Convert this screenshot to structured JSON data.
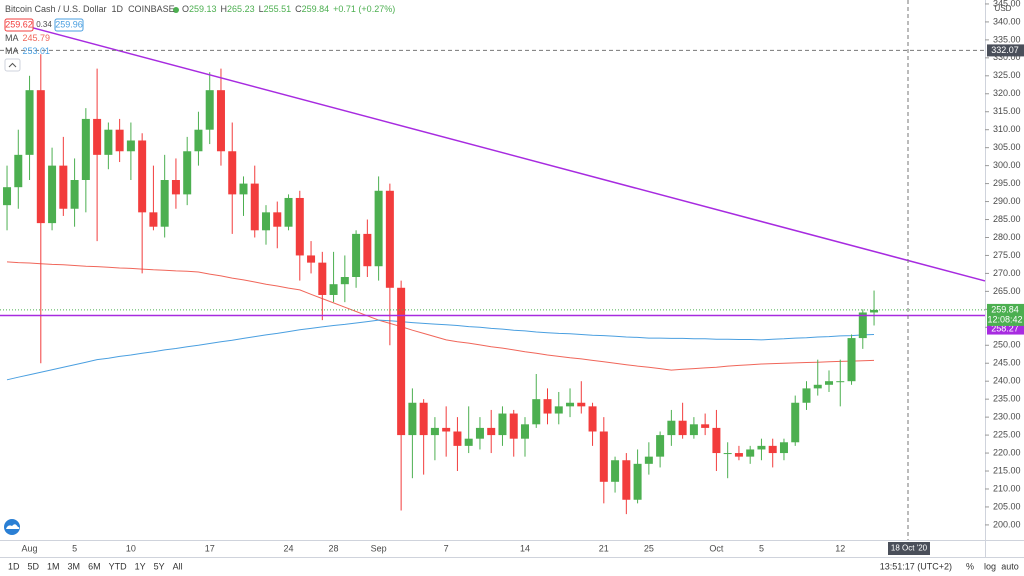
{
  "chart_data": {
    "type": "candlestick",
    "header": {
      "symbol": "Bitcoin Cash / U.S. Dollar",
      "interval": "1D",
      "exchange": "COINBASE",
      "quote": [
        [
          "O",
          "259.13"
        ],
        [
          "H",
          "265.23"
        ],
        [
          "L",
          "255.51"
        ],
        [
          "C",
          "259.84"
        ]
      ],
      "change": "+0.71 (+0.27%)",
      "sell": "259.62",
      "spread": "0.34",
      "buy": "259.96"
    },
    "currency": "USD",
    "up_color": "#4caf50",
    "down_color": "#f23c3c",
    "categories": [
      null,
      null,
      "Aug",
      null,
      null,
      null,
      "5",
      null,
      null,
      null,
      null,
      "10",
      null,
      null,
      null,
      null,
      null,
      null,
      "17",
      null,
      null,
      null,
      null,
      null,
      null,
      "24",
      null,
      null,
      null,
      "28",
      null,
      null,
      null,
      "Sep",
      null,
      null,
      null,
      null,
      null,
      "7",
      null,
      null,
      null,
      null,
      null,
      null,
      "14",
      null,
      null,
      null,
      null,
      null,
      null,
      "21",
      null,
      null,
      null,
      "25",
      null,
      null,
      null,
      null,
      null,
      "Oct",
      null,
      null,
      null,
      "5",
      null,
      null,
      null,
      null,
      null,
      null,
      "12",
      null,
      null,
      null
    ],
    "ohlc": [
      [
        289,
        300,
        282,
        294
      ],
      [
        294,
        310,
        288,
        303
      ],
      [
        303,
        325,
        296,
        321
      ],
      [
        321,
        331,
        245,
        284
      ],
      [
        284,
        305,
        282,
        300
      ],
      [
        300,
        308,
        286,
        288
      ],
      [
        288,
        302,
        283,
        296
      ],
      [
        296,
        316,
        287,
        313
      ],
      [
        313,
        327,
        279,
        303
      ],
      [
        303,
        312,
        299,
        310
      ],
      [
        310,
        313,
        301,
        304
      ],
      [
        304,
        312,
        296,
        307
      ],
      [
        307,
        309,
        270,
        287
      ],
      [
        287,
        300,
        282,
        283
      ],
      [
        283,
        303,
        280,
        296
      ],
      [
        296,
        302,
        288,
        292
      ],
      [
        292,
        308,
        289,
        304
      ],
      [
        304,
        315,
        300,
        310
      ],
      [
        310,
        326,
        306,
        321
      ],
      [
        321,
        327,
        300,
        304
      ],
      [
        304,
        312,
        281,
        292
      ],
      [
        292,
        297,
        286,
        295
      ],
      [
        295,
        300,
        280,
        282
      ],
      [
        282,
        289,
        278,
        287
      ],
      [
        287,
        290,
        277,
        283
      ],
      [
        283,
        292,
        282,
        291
      ],
      [
        291,
        293,
        268,
        275
      ],
      [
        275,
        279,
        270,
        273
      ],
      [
        273,
        276,
        257,
        264
      ],
      [
        264,
        276,
        262,
        267
      ],
      [
        267,
        275,
        262,
        269
      ],
      [
        269,
        282,
        266,
        281
      ],
      [
        281,
        285,
        269,
        272
      ],
      [
        272,
        297,
        268,
        293
      ],
      [
        293,
        295,
        250,
        266
      ],
      [
        266,
        268,
        204,
        225
      ],
      [
        225,
        238,
        213,
        234
      ],
      [
        234,
        235,
        214,
        225
      ],
      [
        225,
        230,
        218,
        227
      ],
      [
        227,
        233,
        219,
        226
      ],
      [
        226,
        230,
        215,
        222
      ],
      [
        222,
        233,
        220,
        224
      ],
      [
        224,
        230,
        221,
        227
      ],
      [
        227,
        232,
        220,
        225
      ],
      [
        225,
        233,
        222,
        231
      ],
      [
        231,
        232,
        219,
        224
      ],
      [
        224,
        230,
        219,
        228
      ],
      [
        228,
        242,
        227,
        235
      ],
      [
        235,
        238,
        228,
        231
      ],
      [
        231,
        237,
        228,
        233
      ],
      [
        233,
        238,
        230,
        234
      ],
      [
        234,
        240,
        231,
        233
      ],
      [
        233,
        234,
        222,
        226
      ],
      [
        226,
        230,
        206,
        212
      ],
      [
        212,
        219,
        209,
        218
      ],
      [
        218,
        220,
        203,
        207
      ],
      [
        207,
        221,
        206,
        217
      ],
      [
        217,
        223,
        214,
        219
      ],
      [
        219,
        226,
        216,
        225
      ],
      [
        225,
        232,
        222,
        229
      ],
      [
        229,
        234,
        224,
        225
      ],
      [
        225,
        230,
        224,
        228
      ],
      [
        228,
        231,
        225,
        227
      ],
      [
        227,
        232,
        215,
        220
      ],
      [
        220,
        223,
        213,
        220
      ],
      [
        220,
        222,
        218,
        219
      ],
      [
        219,
        222,
        217,
        221
      ],
      [
        221,
        224,
        218,
        222
      ],
      [
        222,
        224,
        216,
        220
      ],
      [
        220,
        224,
        218,
        223
      ],
      [
        223,
        236,
        222,
        234
      ],
      [
        234,
        240,
        232,
        238
      ],
      [
        238,
        246,
        236,
        239
      ],
      [
        239,
        243,
        237,
        240
      ],
      [
        240,
        246,
        233,
        240
      ],
      [
        240,
        253,
        239,
        252
      ],
      [
        252,
        260,
        249,
        259.13
      ],
      [
        259.13,
        265.23,
        255.51,
        259.84
      ]
    ],
    "ma": [
      {
        "name": "MA",
        "color": "#f0665a",
        "legend_value": "245.79",
        "values": [
          273.2,
          273.0,
          272.9,
          272.7,
          272.5,
          272.4,
          272.2,
          272.0,
          271.9,
          271.7,
          271.5,
          271.4,
          271.2,
          271.0,
          270.9,
          270.7,
          270.6,
          270.4,
          269.8,
          269.3,
          268.7,
          268.2,
          267.6,
          267.0,
          266.5,
          265.9,
          265.4,
          264.2,
          263.0,
          261.8,
          260.6,
          259.4,
          258.2,
          257.0,
          256.1,
          255.2,
          254.2,
          253.3,
          252.4,
          251.5,
          251.0,
          250.6,
          250.1,
          249.6,
          249.2,
          248.7,
          248.2,
          247.8,
          247.3,
          246.9,
          246.5,
          246.2,
          245.8,
          245.4,
          245.0,
          244.6,
          244.2,
          243.9,
          243.5,
          243.1,
          243.3,
          243.5,
          243.7,
          243.9,
          244.2,
          244.4,
          244.6,
          244.8,
          244.9,
          245.0,
          245.1,
          245.2,
          245.3,
          245.4,
          245.5,
          245.6,
          245.7,
          245.79
        ]
      },
      {
        "name": "MA",
        "color": "#4a9fe0",
        "legend_value": "253.01",
        "values": [
          240.4,
          241.1,
          241.8,
          242.5,
          243.2,
          243.9,
          244.6,
          245.3,
          246.0,
          246.4,
          246.9,
          247.3,
          247.8,
          248.2,
          248.7,
          249.1,
          249.6,
          250.0,
          250.5,
          251.0,
          251.4,
          251.9,
          252.4,
          252.9,
          253.3,
          253.8,
          254.3,
          254.7,
          255.1,
          255.5,
          255.8,
          256.2,
          256.6,
          257.0,
          256.8,
          256.6,
          256.3,
          256.1,
          255.9,
          255.7,
          255.5,
          255.2,
          255.0,
          254.7,
          254.5,
          254.2,
          254.0,
          253.7,
          253.5,
          253.3,
          253.2,
          253.0,
          252.8,
          252.7,
          252.5,
          252.3,
          252.2,
          252.0,
          252.0,
          251.9,
          251.9,
          251.8,
          251.8,
          251.7,
          251.7,
          251.6,
          251.6,
          251.5,
          251.7,
          251.8,
          252.0,
          252.1,
          252.3,
          252.4,
          252.6,
          252.7,
          252.9,
          253.01
        ]
      }
    ],
    "trendline": {
      "color": "#a72be0",
      "values": [
        338.6,
        267.9
      ]
    },
    "hline": {
      "color": "#a72be0",
      "value": 258.27
    },
    "crosshair": {
      "price": 332.07,
      "date": "18 Oct '20"
    },
    "countdown": "12:08:42",
    "ylim": [
      195.8,
      346.1
    ],
    "yticks": [
      {
        "value": 200,
        "label": "200.00"
      },
      {
        "value": 205,
        "label": "205.00"
      },
      {
        "value": 210,
        "label": "210.00"
      },
      {
        "value": 215,
        "label": "215.00"
      },
      {
        "value": 220,
        "label": "220.00"
      },
      {
        "value": 225,
        "label": "225.00"
      },
      {
        "value": 230,
        "label": "230.00"
      },
      {
        "value": 235,
        "label": "235.00"
      },
      {
        "value": 240,
        "label": "240.00"
      },
      {
        "value": 245,
        "label": "245.00"
      },
      {
        "value": 250,
        "label": "250.00"
      },
      {
        "value": 255,
        "label": "255.00"
      },
      {
        "value": 260,
        "label": "260.00"
      },
      {
        "value": 265,
        "label": "265.00"
      },
      {
        "value": 270,
        "label": "270.00"
      },
      {
        "value": 275,
        "label": "275.00"
      },
      {
        "value": 280,
        "label": "280.00"
      },
      {
        "value": 285,
        "label": "285.00"
      },
      {
        "value": 290,
        "label": "290.00"
      },
      {
        "value": 295,
        "label": "295.00"
      },
      {
        "value": 300,
        "label": "300.00"
      },
      {
        "value": 305,
        "label": "305.00"
      },
      {
        "value": 310,
        "label": "310.00"
      },
      {
        "value": 315,
        "label": "315.00"
      },
      {
        "value": 320,
        "label": "320.00"
      },
      {
        "value": 325,
        "label": "325.00"
      },
      {
        "value": 330,
        "label": "330.00"
      },
      {
        "value": 335,
        "label": "335.00"
      },
      {
        "value": 340,
        "label": "340.00"
      },
      {
        "value": 345,
        "label": "345.00"
      }
    ],
    "toolbar": {
      "ranges": [
        "1D",
        "5D",
        "1M",
        "3M",
        "6M",
        "YTD",
        "1Y",
        "5Y",
        "All"
      ],
      "clock": "13:51:17 (UTC+2)",
      "options": [
        "%",
        "log",
        "auto"
      ]
    }
  }
}
